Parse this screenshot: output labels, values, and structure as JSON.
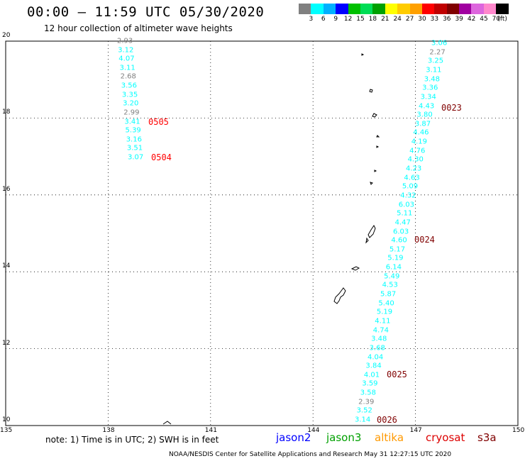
{
  "header": {
    "title": "00:00 – 11:59 UTC 05/30/2020",
    "subtitle": "12 hour collection of altimeter wave heights"
  },
  "colorbar": {
    "colors": [
      "#808080",
      "#00ffff",
      "#00b0ff",
      "#0000ff",
      "#00c000",
      "#00dd55",
      "#00a000",
      "#ffff00",
      "#ffcc00",
      "#ffa000",
      "#ff0000",
      "#c00000",
      "#800000",
      "#a000a0",
      "#dd66dd",
      "#ff88cc",
      "#000000"
    ],
    "labels": [
      "3",
      "6",
      "9",
      "12",
      "15",
      "18",
      "21",
      "24",
      "27",
      "30",
      "33",
      "36",
      "39",
      "42",
      "45",
      "70",
      "(ft)"
    ]
  },
  "map": {
    "lon_range": [
      135,
      150
    ],
    "lat_range": [
      10,
      20
    ],
    "lon_ticks": [
      "135",
      "138",
      "141",
      "144",
      "147",
      "150"
    ],
    "lat_ticks": [
      "20",
      "18",
      "16",
      "14",
      "12",
      "10"
    ],
    "grid": "dotted",
    "west_track": {
      "heights": [
        "2.93",
        "3.12",
        "4.07",
        "3.11",
        "2.68",
        "3.56",
        "3.35",
        "3.20",
        "2.99",
        "3.41",
        "5.39",
        "3.16",
        "3.51",
        "3.07"
      ],
      "colors": [
        "#808080",
        "#00ffff",
        "#00ffff",
        "#00ffff",
        "#808080",
        "#00ffff",
        "#00ffff",
        "#00ffff",
        "#808080",
        "#00ffff",
        "#00ffff",
        "#00ffff",
        "#00ffff",
        "#00ffff"
      ],
      "times": [
        {
          "label": "0505",
          "color": "#ff0000"
        },
        {
          "label": "0504",
          "color": "#ff0000"
        }
      ]
    },
    "east_track": {
      "heights": [
        "3.06",
        "2.27",
        "3.25",
        "3.11",
        "3.48",
        "3.36",
        "3.34",
        "4.43",
        "3.80",
        "3.87",
        "4.46",
        "4.19",
        "4.76",
        "4.30",
        "4.23",
        "4.63",
        "5.09",
        "4.32",
        "6.03",
        "5.11",
        "4.47",
        "6.03",
        "4.60",
        "5.17",
        "5.19",
        "6.14",
        "5.49",
        "4.53",
        "5.87",
        "5.40",
        "5.19",
        "4.11",
        "4.74",
        "3.48",
        "3.68",
        "4.04",
        "3.84",
        "4.01",
        "3.59",
        "3.58",
        "2.39",
        "3.52",
        "3.14"
      ],
      "colors": [
        "#00ffff",
        "#808080",
        "#00ffff",
        "#00ffff",
        "#00ffff",
        "#00ffff",
        "#00ffff",
        "#00ffff",
        "#00ffff",
        "#00ffff",
        "#00ffff",
        "#00ffff",
        "#00ffff",
        "#00ffff",
        "#00ffff",
        "#00ffff",
        "#00ffff",
        "#00ffff",
        "#00ffff",
        "#00ffff",
        "#00ffff",
        "#00ffff",
        "#00ffff",
        "#00ffff",
        "#00ffff",
        "#00ffff",
        "#00ffff",
        "#00ffff",
        "#00ffff",
        "#00ffff",
        "#00ffff",
        "#00ffff",
        "#00ffff",
        "#00ffff",
        "#00ffff",
        "#00ffff",
        "#00ffff",
        "#00ffff",
        "#00ffff",
        "#00ffff",
        "#808080",
        "#00ffff",
        "#00ffff"
      ],
      "times": [
        {
          "label": "0023",
          "color": "#800000"
        },
        {
          "label": "0024",
          "color": "#800000"
        },
        {
          "label": "0025",
          "color": "#800000"
        },
        {
          "label": "0026",
          "color": "#800000"
        }
      ]
    }
  },
  "footer": {
    "note": "note: 1) Time is in UTC; 2) SWH is in feet",
    "legend": [
      {
        "label": "jason2",
        "color": "#0000ff"
      },
      {
        "label": "jason3",
        "color": "#00a000"
      },
      {
        "label": "altika",
        "color": "#ff9900"
      },
      {
        "label": "cryosat",
        "color": "#dd0000"
      },
      {
        "label": "s3a",
        "color": "#800000"
      }
    ],
    "credit": "NOAA/NESDIS Center for Satellite Applications and Research     May 31 12:27:15 UTC 2020"
  }
}
